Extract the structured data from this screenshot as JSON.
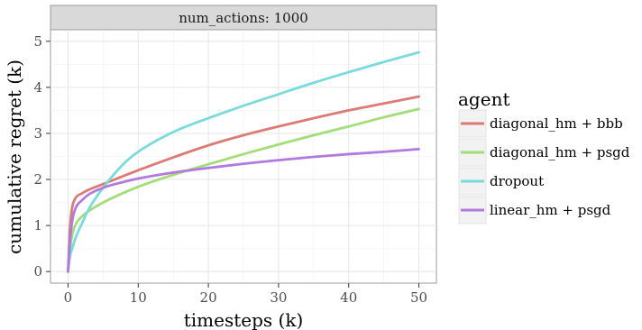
{
  "chart_data": {
    "type": "line",
    "facet_label": "num_actions: 1000",
    "xlabel": "timesteps (k)",
    "ylabel": "cumulative regret (k)",
    "xlim": [
      -2.5,
      52.5
    ],
    "ylim": [
      -0.25,
      5.25
    ],
    "x_ticks": [
      0,
      10,
      20,
      30,
      40,
      50
    ],
    "y_ticks": [
      0,
      1,
      2,
      3,
      4,
      5
    ],
    "grid": true,
    "legend_title": "agent",
    "legend_position": "right",
    "series": [
      {
        "name": "diagonal_hm + bbb",
        "color": "#db7b74",
        "points": [
          [
            0,
            0
          ],
          [
            0.3,
            1.0
          ],
          [
            0.6,
            1.4
          ],
          [
            1,
            1.58
          ],
          [
            2,
            1.7
          ],
          [
            3,
            1.78
          ],
          [
            5,
            1.9
          ],
          [
            10,
            2.2
          ],
          [
            15,
            2.48
          ],
          [
            20,
            2.74
          ],
          [
            25,
            2.96
          ],
          [
            30,
            3.15
          ],
          [
            35,
            3.33
          ],
          [
            40,
            3.5
          ],
          [
            45,
            3.65
          ],
          [
            50,
            3.8
          ]
        ]
      },
      {
        "name": "diagonal_hm + psgd",
        "color": "#a3dd78",
        "points": [
          [
            0,
            0
          ],
          [
            0.3,
            0.5
          ],
          [
            0.6,
            0.8
          ],
          [
            1,
            1.0
          ],
          [
            2,
            1.2
          ],
          [
            3,
            1.32
          ],
          [
            5,
            1.5
          ],
          [
            10,
            1.84
          ],
          [
            15,
            2.1
          ],
          [
            20,
            2.33
          ],
          [
            25,
            2.55
          ],
          [
            30,
            2.76
          ],
          [
            35,
            2.96
          ],
          [
            40,
            3.15
          ],
          [
            45,
            3.35
          ],
          [
            50,
            3.53
          ]
        ]
      },
      {
        "name": "dropout",
        "color": "#7adbdd",
        "points": [
          [
            0,
            0
          ],
          [
            0.3,
            0.35
          ],
          [
            0.6,
            0.5
          ],
          [
            1,
            0.7
          ],
          [
            2,
            1.05
          ],
          [
            3,
            1.37
          ],
          [
            5,
            1.82
          ],
          [
            8,
            2.35
          ],
          [
            10,
            2.6
          ],
          [
            15,
            3.03
          ],
          [
            20,
            3.33
          ],
          [
            25,
            3.6
          ],
          [
            30,
            3.85
          ],
          [
            35,
            4.1
          ],
          [
            40,
            4.33
          ],
          [
            45,
            4.55
          ],
          [
            50,
            4.76
          ]
        ]
      },
      {
        "name": "linear_hm + psgd",
        "color": "#b27adf",
        "points": [
          [
            0,
            0
          ],
          [
            0.3,
            0.7
          ],
          [
            0.6,
            1.1
          ],
          [
            1,
            1.35
          ],
          [
            2,
            1.55
          ],
          [
            3,
            1.68
          ],
          [
            5,
            1.82
          ],
          [
            8,
            1.95
          ],
          [
            10,
            2.02
          ],
          [
            15,
            2.15
          ],
          [
            20,
            2.25
          ],
          [
            25,
            2.34
          ],
          [
            30,
            2.42
          ],
          [
            35,
            2.49
          ],
          [
            40,
            2.55
          ],
          [
            45,
            2.6
          ],
          [
            50,
            2.66
          ]
        ]
      }
    ]
  }
}
